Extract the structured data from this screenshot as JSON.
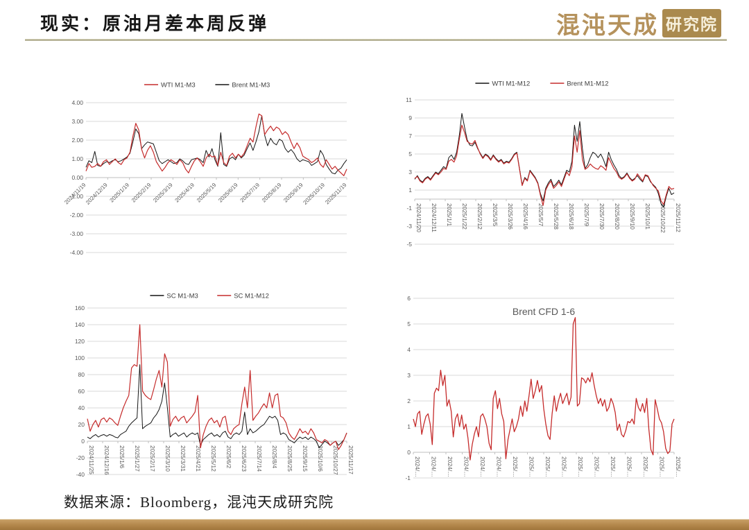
{
  "page": {
    "title": "现实：原油月差本周反弹",
    "footer": "数据来源：Bloomberg，混沌天成研究院"
  },
  "logo": {
    "brand": "混沌天成",
    "stamp": "研究院"
  },
  "colors": {
    "red": "#c52b2b",
    "black": "#141414",
    "grid": "#d9d9d9",
    "axis": "#bfbfbf",
    "tick_text": "#595959",
    "legend_text": "#404040",
    "gold_bar": "#b2864a",
    "logo_gold": "#b5925c"
  },
  "chart_data": [
    {
      "type": "line",
      "legend": [
        {
          "name": "WTI M1-M3",
          "color": "#c52b2b"
        },
        {
          "name": "Brent M1-M3",
          "color": "#141414"
        }
      ],
      "ylim": [
        -4,
        4
      ],
      "y_ticks": [
        "4.00",
        "3.00",
        "2.00",
        "1.00",
        "0.00",
        "-1.00",
        "-2.00",
        "-3.00",
        "-4.00"
      ],
      "x_labels": [
        "2024/11/19",
        "2024/12/19",
        "2025/1/19",
        "2025/2/19",
        "2025/3/19",
        "2025/4/19",
        "2025/5/19",
        "2025/6/19",
        "2025/7/19",
        "2025/8/19",
        "2025/9/19",
        "2025/10/19",
        "2025/11/19"
      ],
      "x_label_style": "diagonal",
      "grid": true,
      "plot": {
        "l": 32,
        "r": 12,
        "t": 36,
        "b": 6
      },
      "series": [
        {
          "name": "Brent M1-M3",
          "color": "#141414",
          "width": 1.0,
          "values": [
            0.55,
            0.9,
            0.8,
            1.4,
            0.65,
            0.6,
            0.75,
            0.85,
            0.8,
            0.9,
            0.95,
            0.85,
            0.9,
            1.0,
            1.1,
            1.3,
            1.9,
            2.6,
            2.35,
            1.55,
            1.75,
            1.9,
            1.85,
            1.8,
            1.35,
            0.9,
            0.75,
            0.85,
            0.95,
            0.85,
            0.75,
            0.8,
            1.0,
            0.9,
            0.75,
            0.7,
            0.95,
            1.0,
            1.05,
            0.95,
            0.8,
            1.45,
            1.1,
            1.55,
            0.95,
            0.6,
            2.4,
            0.7,
            0.6,
            1.0,
            1.1,
            0.95,
            1.25,
            1.05,
            1.2,
            1.55,
            1.85,
            1.45,
            1.9,
            2.45,
            3.3,
            2.25,
            1.7,
            2.1,
            1.85,
            1.75,
            2.05,
            1.95,
            1.55,
            1.35,
            1.5,
            1.3,
            1.0,
            0.85,
            0.95,
            0.9,
            0.85,
            0.65,
            0.75,
            0.85,
            1.45,
            1.2,
            0.7,
            0.45,
            0.25,
            0.2,
            0.4,
            0.5,
            0.75,
            0.95
          ]
        },
        {
          "name": "WTI M1-M3",
          "color": "#c52b2b",
          "width": 1.2,
          "values": [
            0.35,
            0.75,
            0.55,
            0.6,
            0.75,
            0.6,
            0.85,
            0.95,
            0.7,
            0.85,
            1.0,
            0.8,
            0.7,
            0.95,
            1.05,
            1.35,
            2.2,
            2.9,
            2.55,
            1.5,
            1.05,
            1.45,
            1.7,
            1.35,
            0.85,
            0.6,
            0.35,
            0.55,
            0.8,
            0.95,
            0.85,
            0.7,
            0.95,
            0.8,
            0.45,
            0.25,
            0.6,
            0.9,
            1.05,
            0.85,
            0.6,
            1.05,
            1.25,
            1.1,
            1.15,
            0.65,
            1.35,
            0.8,
            0.65,
            1.15,
            1.3,
            1.05,
            1.25,
            1.1,
            1.3,
            1.7,
            2.1,
            1.9,
            2.7,
            3.4,
            3.3,
            2.3,
            2.55,
            2.75,
            2.5,
            2.7,
            2.6,
            2.3,
            2.45,
            2.3,
            1.9,
            1.55,
            1.85,
            1.6,
            1.15,
            1.05,
            0.95,
            0.8,
            0.9,
            1.05,
            0.7,
            0.55,
            0.95,
            0.7,
            0.45,
            0.6,
            0.4,
            0.25,
            0.1,
            0.45
          ]
        }
      ]
    },
    {
      "type": "line",
      "legend": [
        {
          "name": "WTI M1-M12",
          "color": "#141414"
        },
        {
          "name": "Brent M1-M12",
          "color": "#c52b2b"
        }
      ],
      "ylim": [
        -5,
        11
      ],
      "y_ticks": [
        "11",
        "9",
        "7",
        "5",
        "3",
        "1",
        "-1",
        "-3",
        "-5"
      ],
      "x_labels": [
        "2024/11/20",
        "2024/12/11",
        "2025/1/1",
        "2025/1/22",
        "2025/2/12",
        "2025/3/5",
        "2025/3/26",
        "2025/4/16",
        "2025/5/7",
        "2025/5/28",
        "2025/6/18",
        "2025/7/9",
        "2025/7/30",
        "2025/8/20",
        "2025/9/10",
        "2025/10/1",
        "2025/10/22",
        "2025/11/12"
      ],
      "x_label_style": "vertical",
      "grid": true,
      "plot": {
        "l": 28,
        "r": 28,
        "t": 34,
        "b": 8
      },
      "series": [
        {
          "name": "WTI M1-M12",
          "color": "#141414",
          "width": 1.0,
          "values": [
            2.2,
            2.6,
            2.1,
            1.9,
            2.3,
            2.5,
            2.2,
            2.6,
            3.0,
            2.8,
            3.2,
            3.6,
            3.4,
            4.6,
            4.9,
            4.4,
            5.2,
            7.0,
            9.5,
            8.0,
            6.6,
            6.0,
            5.9,
            6.3,
            5.6,
            5.1,
            4.6,
            5.0,
            4.8,
            4.4,
            4.9,
            4.5,
            4.2,
            4.4,
            4.0,
            4.2,
            4.1,
            4.5,
            5.0,
            5.2,
            3.4,
            1.6,
            2.4,
            2.1,
            3.2,
            2.8,
            2.4,
            1.8,
            0.6,
            -0.2,
            1.2,
            1.8,
            2.2,
            1.4,
            1.7,
            2.1,
            1.6,
            2.4,
            3.2,
            3.0,
            4.2,
            8.2,
            6.4,
            8.6,
            5.6,
            3.4,
            3.8,
            4.6,
            5.2,
            5.0,
            4.6,
            5.0,
            4.4,
            3.6,
            5.2,
            4.4,
            3.8,
            3.3,
            2.6,
            2.3,
            2.5,
            2.9,
            2.4,
            2.1,
            2.3,
            2.6,
            2.2,
            1.9,
            2.6,
            2.5,
            1.9,
            1.6,
            1.3,
            0.6,
            -0.5,
            -0.9,
            0.3,
            1.2,
            0.5,
            0.7
          ]
        },
        {
          "name": "Brent M1-M12",
          "color": "#c52b2b",
          "width": 1.2,
          "values": [
            2.3,
            2.5,
            2.0,
            1.8,
            2.2,
            2.4,
            2.1,
            2.5,
            2.9,
            2.7,
            3.0,
            3.4,
            3.3,
            4.2,
            4.4,
            4.1,
            4.8,
            6.6,
            8.2,
            7.4,
            6.4,
            6.2,
            6.1,
            6.5,
            5.7,
            5.0,
            4.5,
            4.9,
            4.7,
            4.3,
            4.8,
            4.4,
            4.1,
            4.3,
            3.9,
            4.1,
            4.0,
            4.4,
            4.9,
            5.1,
            3.3,
            1.5,
            2.3,
            2.0,
            3.1,
            2.7,
            2.3,
            1.7,
            0.4,
            -0.7,
            1.0,
            1.6,
            2.0,
            1.2,
            1.5,
            1.9,
            1.4,
            2.2,
            3.0,
            2.6,
            3.6,
            7.0,
            5.2,
            7.6,
            4.4,
            3.3,
            3.5,
            3.9,
            3.6,
            3.4,
            3.3,
            3.7,
            3.5,
            3.2,
            4.6,
            4.0,
            3.4,
            3.0,
            2.4,
            2.2,
            2.4,
            2.8,
            2.3,
            2.0,
            2.2,
            2.8,
            2.4,
            2.0,
            2.7,
            2.6,
            2.0,
            1.5,
            1.2,
            0.9,
            -0.2,
            -0.6,
            0.5,
            1.4,
            1.1,
            1.2
          ]
        }
      ]
    },
    {
      "type": "line",
      "legend": [
        {
          "name": "SC M1-M3",
          "color": "#141414"
        },
        {
          "name": "SC M1-M12",
          "color": "#c52b2b"
        }
      ],
      "ylim": [
        -40,
        160
      ],
      "y_ticks": [
        "160",
        "140",
        "120",
        "100",
        "80",
        "60",
        "40",
        "20",
        "0",
        "-20",
        "-40"
      ],
      "x_labels": [
        "2024/11/25",
        "2024/12/16",
        "2025/1/6",
        "2025/1/27",
        "2025/2/17",
        "2025/3/10",
        "2025/3/31",
        "2025/4/21",
        "2025/5/12",
        "2025/6/2",
        "2025/6/23",
        "2025/7/14",
        "2025/8/4",
        "2025/8/25",
        "2025/9/15",
        "2025/10/6",
        "2025/10/27",
        "2025/11/17"
      ],
      "x_label_style": "vertical",
      "grid": true,
      "plot": {
        "l": 34,
        "r": 12,
        "t": 28,
        "b": 12
      },
      "series": [
        {
          "name": "SC M1-M3",
          "color": "#141414",
          "width": 1.0,
          "values": [
            5,
            3,
            6,
            8,
            5,
            7,
            8,
            6,
            8,
            7,
            5,
            4,
            8,
            10,
            12,
            18,
            22,
            25,
            28,
            92,
            15,
            18,
            20,
            22,
            28,
            32,
            38,
            48,
            70,
            40,
            5,
            8,
            10,
            6,
            8,
            10,
            5,
            8,
            10,
            8,
            10,
            -5,
            2,
            5,
            8,
            10,
            6,
            8,
            5,
            10,
            12,
            5,
            3,
            8,
            10,
            8,
            12,
            35,
            8,
            15,
            10,
            12,
            15,
            18,
            20,
            25,
            30,
            28,
            30,
            25,
            8,
            10,
            8,
            2,
            0,
            -2,
            2,
            5,
            3,
            5,
            2,
            5,
            3,
            0,
            -8,
            -4,
            0,
            -2,
            -5,
            -2,
            0,
            -5,
            -2,
            2,
            10
          ]
        },
        {
          "name": "SC M1-M12",
          "color": "#c52b2b",
          "width": 1.2,
          "values": [
            27,
            12,
            20,
            25,
            17,
            26,
            28,
            23,
            28,
            26,
            22,
            19,
            30,
            40,
            48,
            55,
            88,
            92,
            90,
            140,
            60,
            55,
            52,
            50,
            62,
            75,
            85,
            65,
            105,
            95,
            18,
            26,
            30,
            24,
            28,
            30,
            22,
            26,
            30,
            35,
            55,
            -8,
            8,
            18,
            25,
            28,
            22,
            25,
            17,
            28,
            30,
            12,
            8,
            15,
            18,
            20,
            45,
            65,
            40,
            85,
            25,
            30,
            34,
            40,
            45,
            40,
            58,
            40,
            55,
            57,
            30,
            28,
            22,
            10,
            5,
            2,
            8,
            15,
            10,
            12,
            8,
            15,
            10,
            2,
            0,
            -2,
            2,
            0,
            -5,
            -2,
            0,
            -10,
            -5,
            2,
            10
          ]
        }
      ]
    },
    {
      "type": "line",
      "title": "Brent CFD 1-6",
      "ylim": [
        -1,
        6
      ],
      "y_ticks": [
        "6",
        "5",
        "4",
        "3",
        "2",
        "1",
        "0",
        "-1"
      ],
      "x_labels": [
        "2024/…",
        "2024/…",
        "2024/…",
        "2024/…",
        "2024/…",
        "2024/…",
        "2025/…",
        "2025/…",
        "2025/…",
        "2025/…",
        "2025/…",
        "2025/…",
        "2025/…",
        "2025/…",
        "2025/…",
        "2025/…",
        "2025/…"
      ],
      "x_label_style": "vertical",
      "grid": true,
      "plot": {
        "l": 26,
        "r": 28,
        "t": 14,
        "b": 12
      },
      "series": [
        {
          "name": "Brent CFD 1-6",
          "color": "#c52b2b",
          "width": 1.3,
          "values": [
            1.3,
            1.0,
            1.5,
            1.6,
            0.7,
            1.1,
            1.4,
            1.5,
            1.1,
            0.3,
            2.3,
            2.5,
            2.4,
            3.2,
            2.6,
            3.0,
            1.8,
            2.05,
            1.6,
            0.6,
            1.3,
            1.5,
            1.0,
            1.45,
            0.9,
            1.1,
            0.55,
            -0.3,
            0.3,
            0.7,
            1.0,
            0.6,
            1.4,
            1.5,
            1.3,
            1.0,
            0.35,
            0.1,
            2.1,
            2.4,
            1.7,
            2.1,
            1.5,
            1.2,
            -0.25,
            0.5,
            0.9,
            1.3,
            0.8,
            1.0,
            1.3,
            1.8,
            1.4,
            2.0,
            1.6,
            2.2,
            2.85,
            2.1,
            2.4,
            2.8,
            2.35,
            2.6,
            1.7,
            1.1,
            0.65,
            0.5,
            1.5,
            2.2,
            1.6,
            2.0,
            2.3,
            1.9,
            2.1,
            2.3,
            1.85,
            2.15,
            5.0,
            5.25,
            1.8,
            1.9,
            2.9,
            2.85,
            2.7,
            2.9,
            2.75,
            3.1,
            2.6,
            2.2,
            1.9,
            2.1,
            1.8,
            2.05,
            1.6,
            1.75,
            2.1,
            1.9,
            1.55,
            0.85,
            1.1,
            0.7,
            0.6,
            0.85,
            1.2,
            1.15,
            1.3,
            1.1,
            2.1,
            1.75,
            1.6,
            1.9,
            1.55,
            2.1,
            0.9,
            0.1,
            -0.1,
            2.05,
            1.7,
            1.3,
            1.15,
            0.8,
            0.15,
            -0.05,
            0.05,
            1.1,
            1.3
          ]
        }
      ]
    }
  ]
}
